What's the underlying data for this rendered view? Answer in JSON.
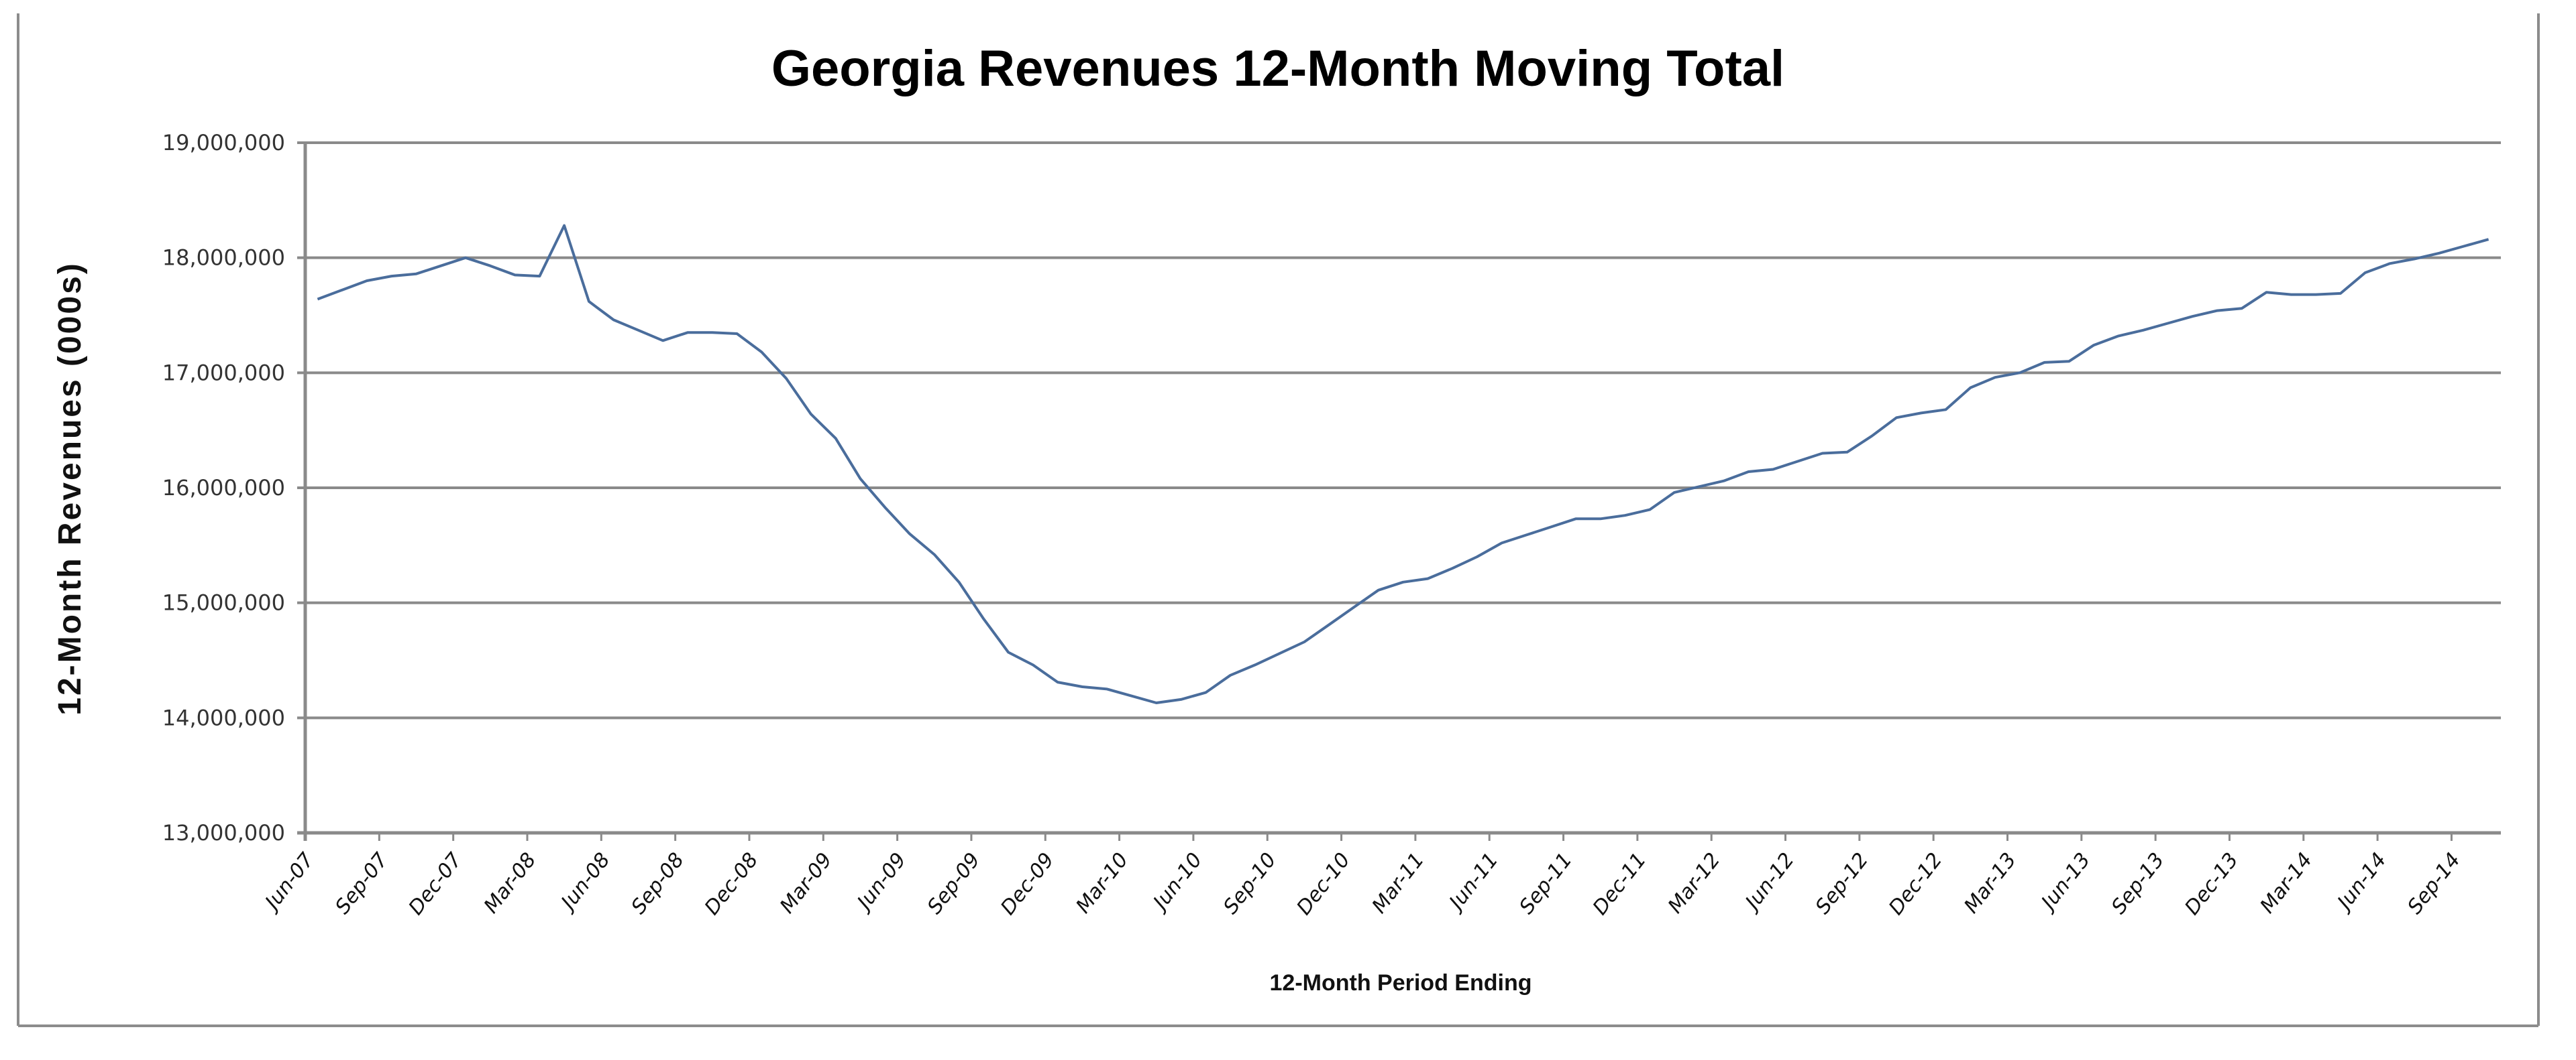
{
  "chart_data": {
    "type": "line",
    "title": "Georgia Revenues 12-Month Moving Total",
    "xlabel": "12-Month Period Ending",
    "ylabel": "12-Month Revenues (000s)",
    "ylim": [
      13000000,
      19000000
    ],
    "yticks": [
      13000000,
      14000000,
      15000000,
      16000000,
      17000000,
      18000000,
      19000000
    ],
    "ytick_labels": [
      "13,000,000",
      "14,000,000",
      "15,000,000",
      "16,000,000",
      "17,000,000",
      "18,000,000",
      "19,000,000"
    ],
    "grid": true,
    "legend": "none",
    "x_start": "Jun-07",
    "x_interval": "monthly",
    "xtick_labels": [
      "Jun-07",
      "Sep-07",
      "Dec-07",
      "Mar-08",
      "Jun-08",
      "Sep-08",
      "Dec-08",
      "Mar-09",
      "Jun-09",
      "Sep-09",
      "Dec-09",
      "Mar-10",
      "Jun-10",
      "Sep-10",
      "Dec-10",
      "Mar-11",
      "Jun-11",
      "Sep-11",
      "Dec-11",
      "Mar-12",
      "Jun-12",
      "Sep-12",
      "Dec-12",
      "Mar-13",
      "Jun-13",
      "Sep-13",
      "Dec-13",
      "Mar-14",
      "Jun-14",
      "Sep-14"
    ],
    "xtick_every": 3,
    "series": [
      {
        "name": "12-Month Moving Total",
        "color": "#4a6d9c",
        "values": [
          17640000,
          17720000,
          17800000,
          17840000,
          17860000,
          17930000,
          18000000,
          17930000,
          17850000,
          17840000,
          18280000,
          17620000,
          17460000,
          17370000,
          17280000,
          17350000,
          17350000,
          17340000,
          17180000,
          16950000,
          16640000,
          16430000,
          16080000,
          15830000,
          15600000,
          15420000,
          15180000,
          14860000,
          14570000,
          14460000,
          14310000,
          14270000,
          14250000,
          14190000,
          14130000,
          14160000,
          14220000,
          14370000,
          14460000,
          14560000,
          14660000,
          14810000,
          14960000,
          15110000,
          15180000,
          15210000,
          15300000,
          15400000,
          15520000,
          15590000,
          15660000,
          15730000,
          15730000,
          15760000,
          15810000,
          15960000,
          16010000,
          16060000,
          16140000,
          16160000,
          16230000,
          16300000,
          16310000,
          16450000,
          16610000,
          16650000,
          16680000,
          16870000,
          16960000,
          17000000,
          17090000,
          17100000,
          17240000,
          17320000,
          17370000,
          17430000,
          17490000,
          17540000,
          17560000,
          17700000,
          17680000,
          17680000,
          17690000,
          17870000,
          17950000,
          17990000,
          18040000,
          18100000,
          18160000
        ]
      }
    ]
  }
}
